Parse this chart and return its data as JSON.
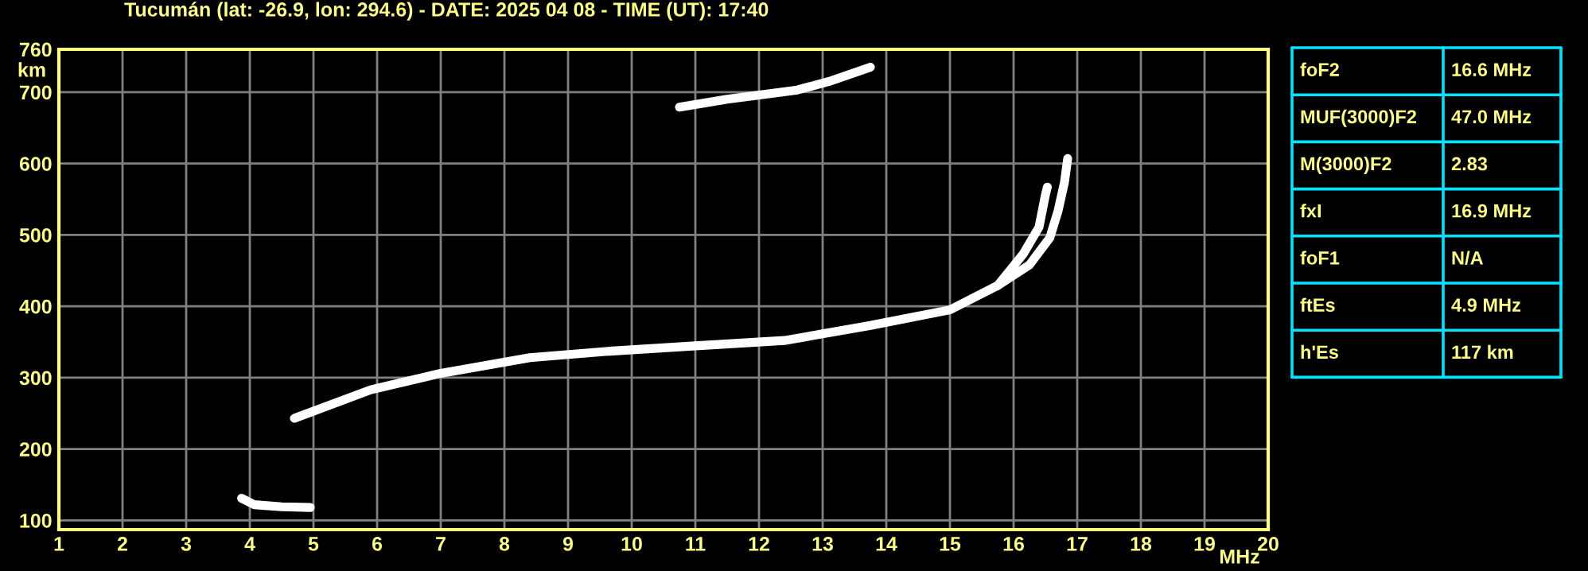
{
  "chart_data": {
    "type": "line",
    "title": "Tucumán (lat: -26.9, lon: 294.6) - DATE: 2025 04 08 - TIME (UT): 17:40",
    "xlabel": "MHz",
    "ylabel": "km",
    "xlim": [
      1,
      20
    ],
    "xticks": [
      1,
      2,
      3,
      4,
      5,
      6,
      7,
      8,
      9,
      10,
      11,
      12,
      13,
      14,
      15,
      16,
      17,
      18,
      19,
      20
    ],
    "ylim": [
      87,
      760
    ],
    "yticks": [
      100,
      200,
      300,
      400,
      500,
      600,
      700,
      760
    ],
    "grid": true,
    "legend": false,
    "marker": "none",
    "line_style": "solid",
    "series": [
      {
        "color": "#ffffff",
        "x": [
          3.87,
          4.07,
          4.5,
          4.95
        ],
        "values": [
          131,
          122,
          119,
          118
        ]
      },
      {
        "color": "#ffffff",
        "x": [
          4.7,
          5.9,
          7.0,
          8.4,
          9.65,
          10.9,
          12.4,
          13.75,
          15.0,
          15.75,
          16.15,
          16.4,
          16.5,
          16.53
        ],
        "values": [
          243,
          283,
          306,
          328,
          337,
          344,
          352,
          373,
          395,
          429,
          473,
          511,
          556,
          567
        ]
      },
      {
        "color": "#ffffff",
        "x": [
          15.75,
          16.25,
          16.57,
          16.7,
          16.8,
          16.85
        ],
        "values": [
          429,
          458,
          496,
          534,
          574,
          607
        ]
      },
      {
        "color": "#ffffff",
        "x": [
          10.75,
          11.5,
          12.1,
          12.6,
          13.1,
          13.75
        ],
        "values": [
          679,
          690,
          697,
          703,
          715,
          735
        ]
      }
    ],
    "annotations": [
      "foF2",
      "16.6 MHz",
      "MUF(3000)F2",
      "47.0 MHz",
      "M(3000)F2",
      "2.83",
      "fxI",
      "16.9 MHz",
      "foF1",
      "N/A",
      "ftEs",
      "4.9 MHz",
      "h'Es",
      "117 km"
    ]
  }
}
